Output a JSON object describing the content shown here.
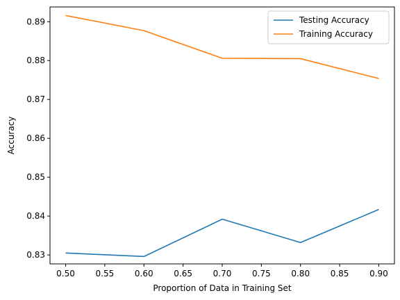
{
  "chart_data": {
    "type": "line",
    "title": "",
    "xlabel": "Proportion of Data in Training Set",
    "ylabel": "Accuracy",
    "x": [
      0.5,
      0.6,
      0.7,
      0.8,
      0.9
    ],
    "xlim": [
      0.48,
      0.92
    ],
    "ylim": [
      0.8277,
      0.8938
    ],
    "xticks": [
      "0.50",
      "0.55",
      "0.60",
      "0.65",
      "0.70",
      "0.75",
      "0.80",
      "0.85",
      "0.90"
    ],
    "yticks": [
      "0.83",
      "0.84",
      "0.85",
      "0.86",
      "0.87",
      "0.88",
      "0.89"
    ],
    "grid": false,
    "legend_position": "top-right",
    "series": [
      {
        "name": "Testing Accuracy",
        "color": "#1f77b4",
        "values": [
          0.8305,
          0.8296,
          0.8392,
          0.8332,
          0.8417
        ]
      },
      {
        "name": "Training Accuracy",
        "color": "#ff7f0e",
        "values": [
          0.8916,
          0.8877,
          0.8806,
          0.8805,
          0.8754
        ]
      }
    ]
  }
}
